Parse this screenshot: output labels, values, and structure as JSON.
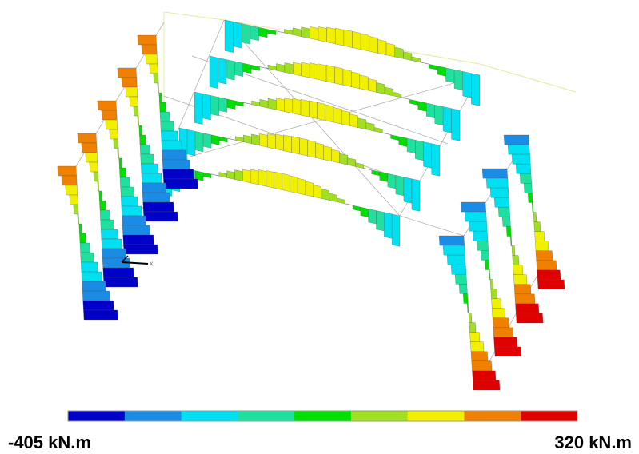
{
  "diagram": {
    "axis_label": "x",
    "colorbar": {
      "colors": [
        "#0000c8",
        "#1a8ce6",
        "#00e0f0",
        "#20e0a0",
        "#00e000",
        "#a0e020",
        "#f0f000",
        "#f08000",
        "#e00000"
      ],
      "min_label": "-405 kN.m",
      "max_label": "320 kN.m"
    }
  }
}
